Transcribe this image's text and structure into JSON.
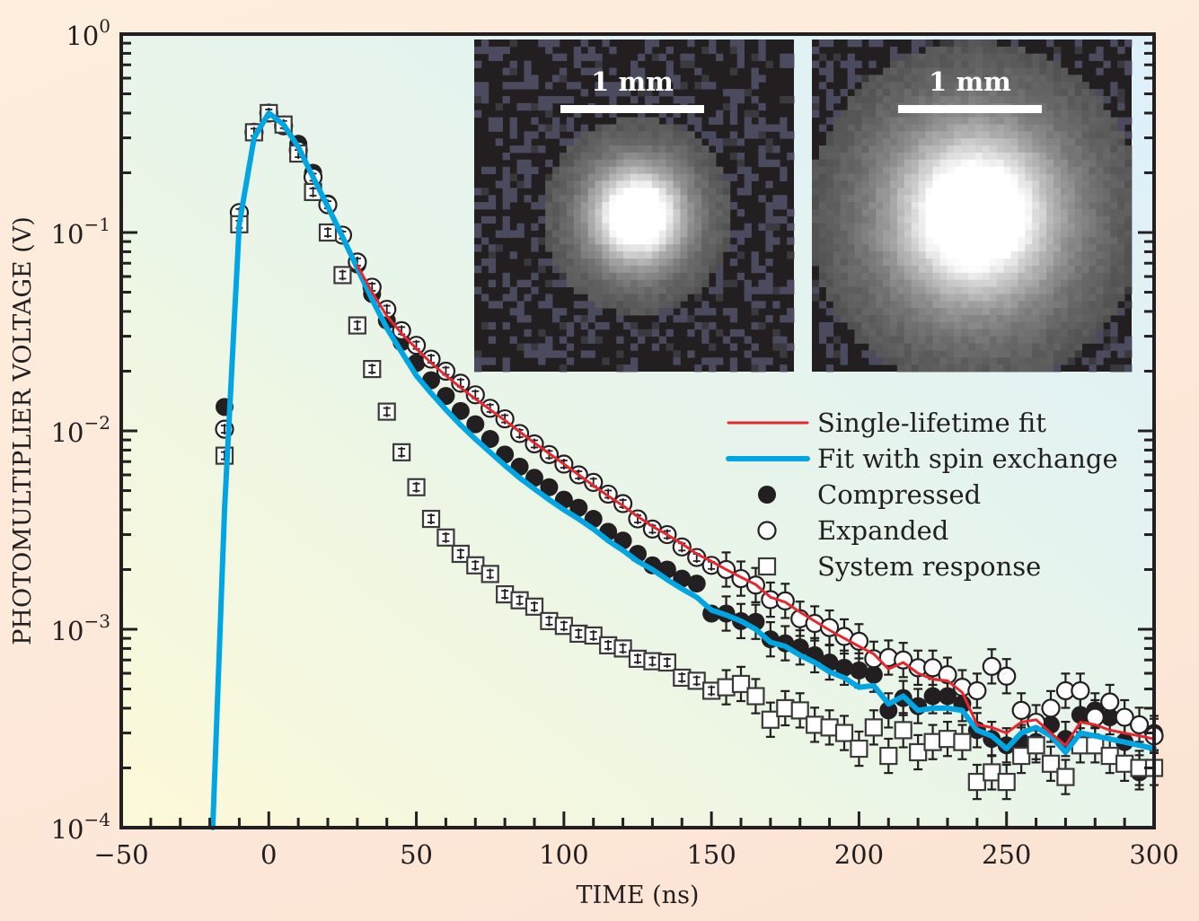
{
  "chart_data": {
    "type": "scatter",
    "title": "",
    "xlabel": "TIME (ns)",
    "ylabel": "PHOTOMULTIPLIER VOLTAGE (V)",
    "xlim": [
      -50,
      300
    ],
    "ylim": [
      0.0001,
      1
    ],
    "yscale": "log",
    "grid": false,
    "legend_position": "right-middle",
    "x_ticks": [
      -50,
      0,
      50,
      100,
      150,
      200,
      250,
      300
    ],
    "x_tick_labels": [
      "−50",
      "0",
      "50",
      "100",
      "150",
      "200",
      "250",
      "300"
    ],
    "y_ticks": [
      1,
      0.1,
      0.01,
      0.001,
      0.0001
    ],
    "y_tick_labels": [
      {
        "base": "10",
        "exp": "0"
      },
      {
        "base": "10",
        "exp": "−1"
      },
      {
        "base": "10",
        "exp": "−2"
      },
      {
        "base": "10",
        "exp": "−3"
      },
      {
        "base": "10",
        "exp": "−4"
      }
    ],
    "colors": {
      "single_lifetime": "#e8262d",
      "spin_exchange": "#00a6e4",
      "markers": "#231f20"
    },
    "legend": [
      {
        "label": "Single-lifetime fit",
        "kind": "line",
        "series": "single_lifetime"
      },
      {
        "label": "Fit with spin exchange",
        "kind": "line",
        "series": "spin_exchange"
      },
      {
        "label": "Compressed",
        "kind": "filled-circle"
      },
      {
        "label": "Expanded",
        "kind": "open-circle"
      },
      {
        "label": "System response",
        "kind": "open-square"
      }
    ],
    "x": [
      -15,
      -10,
      -5,
      0,
      5,
      10,
      15,
      20,
      25,
      30,
      35,
      40,
      45,
      50,
      55,
      60,
      65,
      70,
      75,
      80,
      85,
      90,
      95,
      100,
      105,
      110,
      115,
      120,
      125,
      130,
      135,
      140,
      145,
      150,
      155,
      160,
      165,
      170,
      175,
      180,
      185,
      190,
      195,
      200,
      205,
      210,
      215,
      220,
      225,
      230,
      235,
      240,
      245,
      250,
      255,
      260,
      265,
      270,
      275,
      280,
      285,
      290,
      295,
      300
    ],
    "series": [
      {
        "name": "Compressed",
        "marker": "filled-circle",
        "values": [
          0.0132,
          0.124,
          0.32,
          0.4,
          0.35,
          0.28,
          0.2,
          0.14,
          0.097,
          0.069,
          0.049,
          0.036,
          0.028,
          0.022,
          0.018,
          0.015,
          0.0126,
          0.0108,
          0.0091,
          0.0076,
          0.0066,
          0.0058,
          0.0052,
          0.0045,
          0.0041,
          0.0036,
          0.0031,
          0.0028,
          0.0024,
          0.0021,
          0.002,
          0.0018,
          0.0017,
          0.0012,
          0.0012,
          0.0011,
          0.00109,
          0.00089,
          0.00085,
          0.00081,
          0.00074,
          0.00068,
          0.00064,
          0.00062,
          0.00059,
          0.00039,
          0.00045,
          0.00041,
          0.00046,
          0.00046,
          0.00042,
          0.00031,
          0.00028,
          0.00026,
          0.00027,
          0.00027,
          0.00033,
          0.00028,
          0.00037,
          0.00039,
          0.00036,
          0.00027,
          0.00019,
          0.0003
        ]
      },
      {
        "name": "Expanded",
        "marker": "open-circle",
        "values": [
          0.0102,
          0.126,
          0.32,
          0.4,
          0.345,
          0.26,
          0.19,
          0.138,
          0.097,
          0.071,
          0.053,
          0.041,
          0.032,
          0.027,
          0.023,
          0.02,
          0.0174,
          0.0152,
          0.013,
          0.0115,
          0.0097,
          0.0086,
          0.0076,
          0.0068,
          0.006,
          0.0055,
          0.0048,
          0.0043,
          0.0036,
          0.0032,
          0.003,
          0.0026,
          0.0023,
          0.0021,
          0.002,
          0.0018,
          0.00167,
          0.00141,
          0.00139,
          0.00113,
          0.00107,
          0.00102,
          0.00092,
          0.00087,
          0.00071,
          0.00072,
          0.0007,
          0.00064,
          0.00064,
          0.00059,
          0.00051,
          0.00049,
          0.00065,
          0.00058,
          0.00039,
          0.00034,
          0.0004,
          0.00049,
          0.00049,
          0.00036,
          0.00043,
          0.00036,
          0.00033,
          0.00029
        ]
      },
      {
        "name": "System response",
        "marker": "open-square",
        "values": [
          0.0075,
          0.11,
          0.32,
          0.4,
          0.35,
          0.25,
          0.16,
          0.1,
          0.061,
          0.034,
          0.0205,
          0.0125,
          0.0078,
          0.0052,
          0.0036,
          0.0029,
          0.0024,
          0.0021,
          0.0019,
          0.0015,
          0.0014,
          0.0013,
          0.0011,
          0.00104,
          0.00095,
          0.00093,
          0.00083,
          0.0008,
          0.00071,
          0.00069,
          0.00068,
          0.00057,
          0.00055,
          0.00049,
          0.00051,
          0.00053,
          0.00046,
          0.00035,
          0.0004,
          0.00039,
          0.00033,
          0.00032,
          0.0003,
          0.00025,
          0.00032,
          0.00023,
          0.00031,
          0.00024,
          0.00027,
          0.00028,
          0.00027,
          0.00017,
          0.00019,
          0.00017,
          0.00023,
          0.00026,
          0.00021,
          0.00018,
          0.00026,
          0.00026,
          0.00023,
          0.00021,
          0.0002,
          0.0002
        ]
      }
    ],
    "lines": [
      {
        "name": "Single-lifetime fit",
        "key": "single_lifetime",
        "x": [
          30,
          35,
          40,
          45,
          50,
          55,
          60,
          65,
          70,
          75,
          80,
          85,
          90,
          95,
          100,
          105,
          110,
          115,
          120,
          125,
          130,
          135,
          140,
          145,
          150,
          155,
          160,
          165,
          170,
          175,
          180,
          185,
          190,
          195,
          200,
          205,
          210,
          215,
          220,
          225,
          230,
          235,
          240,
          245,
          250,
          255,
          260,
          265,
          270,
          275,
          280,
          285,
          290,
          295,
          300
        ],
        "values": [
          0.068,
          0.05,
          0.038,
          0.031,
          0.026,
          0.022,
          0.019,
          0.0165,
          0.0145,
          0.0128,
          0.0113,
          0.0099,
          0.0087,
          0.0077,
          0.0068,
          0.006,
          0.0053,
          0.0047,
          0.0042,
          0.0037,
          0.0033,
          0.003,
          0.0027,
          0.0024,
          0.0022,
          0.002,
          0.00183,
          0.00168,
          0.00145,
          0.00137,
          0.00122,
          0.0011,
          0.00099,
          0.0009,
          0.00082,
          0.00075,
          0.00063,
          0.00068,
          0.0006,
          0.00056,
          0.00055,
          0.00048,
          0.00033,
          0.00032,
          0.0003,
          0.00034,
          0.00035,
          0.0003,
          0.00026,
          0.00034,
          0.00033,
          0.00031,
          0.0003,
          0.00029,
          0.00028
        ]
      },
      {
        "name": "Fit with spin exchange",
        "key": "spin_exchange",
        "x": [
          -19,
          -15,
          -10,
          -5,
          0,
          5,
          10,
          15,
          20,
          25,
          30,
          35,
          40,
          45,
          50,
          55,
          60,
          65,
          70,
          75,
          80,
          85,
          90,
          95,
          100,
          105,
          110,
          115,
          120,
          125,
          130,
          135,
          140,
          145,
          150,
          155,
          160,
          165,
          170,
          175,
          180,
          185,
          190,
          195,
          200,
          205,
          210,
          215,
          220,
          225,
          230,
          235,
          240,
          245,
          250,
          255,
          260,
          265,
          270,
          275,
          280,
          285,
          290,
          295,
          300
        ],
        "values": [
          0.0001,
          0.004,
          0.11,
          0.3,
          0.4,
          0.35,
          0.27,
          0.19,
          0.135,
          0.095,
          0.066,
          0.046,
          0.033,
          0.025,
          0.019,
          0.0155,
          0.0128,
          0.0107,
          0.0091,
          0.0078,
          0.0067,
          0.0058,
          0.0051,
          0.0045,
          0.004,
          0.0036,
          0.0032,
          0.0028,
          0.0025,
          0.0022,
          0.002,
          0.00178,
          0.0016,
          0.00145,
          0.00125,
          0.00118,
          0.0011,
          0.001,
          0.00086,
          0.00082,
          0.00074,
          0.00068,
          0.00061,
          0.00057,
          0.00051,
          0.00052,
          0.00042,
          0.00046,
          0.00039,
          0.0004,
          0.0004,
          0.00039,
          0.00031,
          0.00029,
          0.00025,
          0.0003,
          0.00032,
          0.00029,
          0.00024,
          0.0003,
          0.00029,
          0.00028,
          0.00027,
          0.00026,
          0.00025
        ]
      }
    ],
    "insets": [
      {
        "name": "compressed-cloud-image",
        "scale_bar_label": "1 mm",
        "spot_size": "small"
      },
      {
        "name": "expanded-cloud-image",
        "scale_bar_label": "1 mm",
        "spot_size": "large"
      }
    ]
  }
}
